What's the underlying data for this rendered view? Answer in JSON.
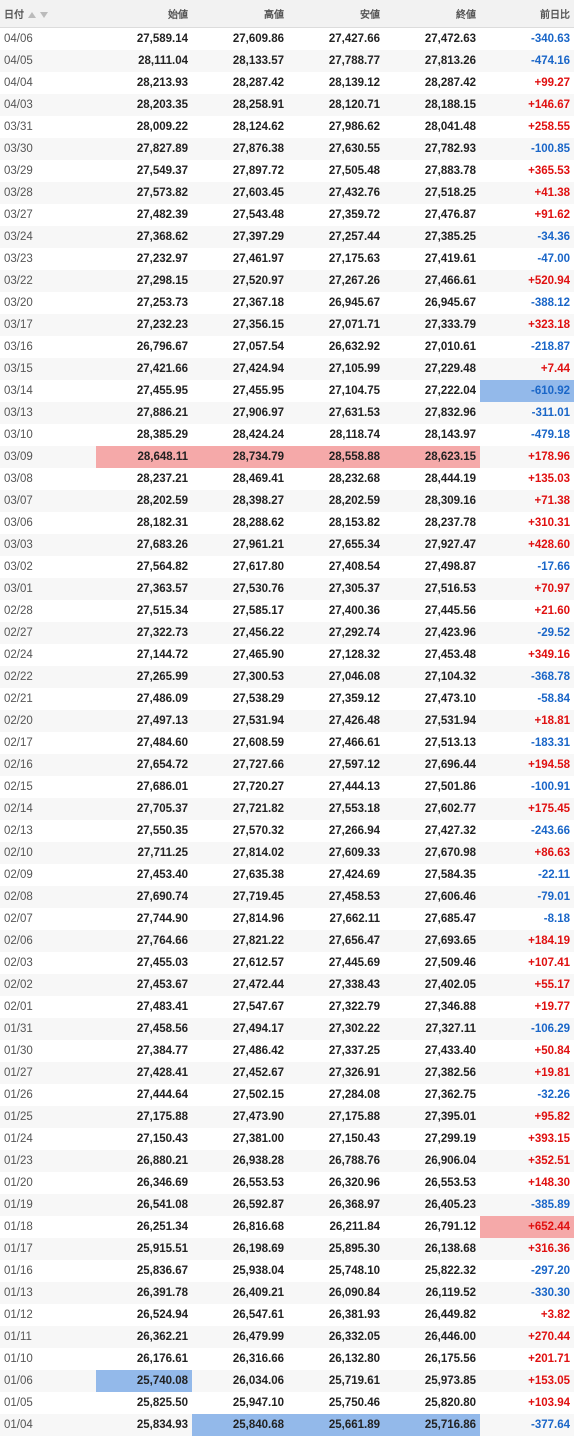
{
  "header": {
    "columns": [
      "日付",
      "始値",
      "高値",
      "安値",
      "終値",
      "前日比"
    ]
  },
  "rows": [
    [
      "04/06",
      "27,589.14",
      "27,609.86",
      "27,427.66",
      "27,472.63",
      "-340.63"
    ],
    [
      "04/05",
      "28,111.04",
      "28,133.57",
      "27,788.77",
      "27,813.26",
      "-474.16"
    ],
    [
      "04/04",
      "28,213.93",
      "28,287.42",
      "28,139.12",
      "28,287.42",
      "+99.27"
    ],
    [
      "04/03",
      "28,203.35",
      "28,258.91",
      "28,120.71",
      "28,188.15",
      "+146.67"
    ],
    [
      "03/31",
      "28,009.22",
      "28,124.62",
      "27,986.62",
      "28,041.48",
      "+258.55"
    ],
    [
      "03/30",
      "27,827.89",
      "27,876.38",
      "27,630.55",
      "27,782.93",
      "-100.85"
    ],
    [
      "03/29",
      "27,549.37",
      "27,897.72",
      "27,505.48",
      "27,883.78",
      "+365.53"
    ],
    [
      "03/28",
      "27,573.82",
      "27,603.45",
      "27,432.76",
      "27,518.25",
      "+41.38"
    ],
    [
      "03/27",
      "27,482.39",
      "27,543.48",
      "27,359.72",
      "27,476.87",
      "+91.62"
    ],
    [
      "03/24",
      "27,368.62",
      "27,397.29",
      "27,257.44",
      "27,385.25",
      "-34.36"
    ],
    [
      "03/23",
      "27,232.97",
      "27,461.97",
      "27,175.63",
      "27,419.61",
      "-47.00"
    ],
    [
      "03/22",
      "27,298.15",
      "27,520.97",
      "27,267.26",
      "27,466.61",
      "+520.94"
    ],
    [
      "03/20",
      "27,253.73",
      "27,367.18",
      "26,945.67",
      "26,945.67",
      "-388.12"
    ],
    [
      "03/17",
      "27,232.23",
      "27,356.15",
      "27,071.71",
      "27,333.79",
      "+323.18"
    ],
    [
      "03/16",
      "26,796.67",
      "27,057.54",
      "26,632.92",
      "27,010.61",
      "-218.87"
    ],
    [
      "03/15",
      "27,421.66",
      "27,424.94",
      "27,105.99",
      "27,229.48",
      "+7.44"
    ],
    [
      "03/14",
      "27,455.95",
      "27,455.95",
      "27,104.75",
      "27,222.04",
      "-610.92"
    ],
    [
      "03/13",
      "27,886.21",
      "27,906.97",
      "27,631.53",
      "27,832.96",
      "-311.01"
    ],
    [
      "03/10",
      "28,385.29",
      "28,424.24",
      "28,118.74",
      "28,143.97",
      "-479.18"
    ],
    [
      "03/09",
      "28,648.11",
      "28,734.79",
      "28,558.88",
      "28,623.15",
      "+178.96"
    ],
    [
      "03/08",
      "28,237.21",
      "28,469.41",
      "28,232.68",
      "28,444.19",
      "+135.03"
    ],
    [
      "03/07",
      "28,202.59",
      "28,398.27",
      "28,202.59",
      "28,309.16",
      "+71.38"
    ],
    [
      "03/06",
      "28,182.31",
      "28,288.62",
      "28,153.82",
      "28,237.78",
      "+310.31"
    ],
    [
      "03/03",
      "27,683.26",
      "27,961.21",
      "27,655.34",
      "27,927.47",
      "+428.60"
    ],
    [
      "03/02",
      "27,564.82",
      "27,617.80",
      "27,408.54",
      "27,498.87",
      "-17.66"
    ],
    [
      "03/01",
      "27,363.57",
      "27,530.76",
      "27,305.37",
      "27,516.53",
      "+70.97"
    ],
    [
      "02/28",
      "27,515.34",
      "27,585.17",
      "27,400.36",
      "27,445.56",
      "+21.60"
    ],
    [
      "02/27",
      "27,322.73",
      "27,456.22",
      "27,292.74",
      "27,423.96",
      "-29.52"
    ],
    [
      "02/24",
      "27,144.72",
      "27,465.90",
      "27,128.32",
      "27,453.48",
      "+349.16"
    ],
    [
      "02/22",
      "27,265.99",
      "27,300.53",
      "27,046.08",
      "27,104.32",
      "-368.78"
    ],
    [
      "02/21",
      "27,486.09",
      "27,538.29",
      "27,359.12",
      "27,473.10",
      "-58.84"
    ],
    [
      "02/20",
      "27,497.13",
      "27,531.94",
      "27,426.48",
      "27,531.94",
      "+18.81"
    ],
    [
      "02/17",
      "27,484.60",
      "27,608.59",
      "27,466.61",
      "27,513.13",
      "-183.31"
    ],
    [
      "02/16",
      "27,654.72",
      "27,727.66",
      "27,597.12",
      "27,696.44",
      "+194.58"
    ],
    [
      "02/15",
      "27,686.01",
      "27,720.27",
      "27,444.13",
      "27,501.86",
      "-100.91"
    ],
    [
      "02/14",
      "27,705.37",
      "27,721.82",
      "27,553.18",
      "27,602.77",
      "+175.45"
    ],
    [
      "02/13",
      "27,550.35",
      "27,570.32",
      "27,266.94",
      "27,427.32",
      "-243.66"
    ],
    [
      "02/10",
      "27,711.25",
      "27,814.02",
      "27,609.33",
      "27,670.98",
      "+86.63"
    ],
    [
      "02/09",
      "27,453.40",
      "27,635.38",
      "27,424.69",
      "27,584.35",
      "-22.11"
    ],
    [
      "02/08",
      "27,690.74",
      "27,719.45",
      "27,458.53",
      "27,606.46",
      "-79.01"
    ],
    [
      "02/07",
      "27,744.90",
      "27,814.96",
      "27,662.11",
      "27,685.47",
      "-8.18"
    ],
    [
      "02/06",
      "27,764.66",
      "27,821.22",
      "27,656.47",
      "27,693.65",
      "+184.19"
    ],
    [
      "02/03",
      "27,455.03",
      "27,612.57",
      "27,445.69",
      "27,509.46",
      "+107.41"
    ],
    [
      "02/02",
      "27,453.67",
      "27,472.44",
      "27,338.43",
      "27,402.05",
      "+55.17"
    ],
    [
      "02/01",
      "27,483.41",
      "27,547.67",
      "27,322.79",
      "27,346.88",
      "+19.77"
    ],
    [
      "01/31",
      "27,458.56",
      "27,494.17",
      "27,302.22",
      "27,327.11",
      "-106.29"
    ],
    [
      "01/30",
      "27,384.77",
      "27,486.42",
      "27,337.25",
      "27,433.40",
      "+50.84"
    ],
    [
      "01/27",
      "27,428.41",
      "27,452.67",
      "27,326.91",
      "27,382.56",
      "+19.81"
    ],
    [
      "01/26",
      "27,444.64",
      "27,502.15",
      "27,284.08",
      "27,362.75",
      "-32.26"
    ],
    [
      "01/25",
      "27,175.88",
      "27,473.90",
      "27,175.88",
      "27,395.01",
      "+95.82"
    ],
    [
      "01/24",
      "27,150.43",
      "27,381.00",
      "27,150.43",
      "27,299.19",
      "+393.15"
    ],
    [
      "01/23",
      "26,880.21",
      "26,938.28",
      "26,788.76",
      "26,906.04",
      "+352.51"
    ],
    [
      "01/20",
      "26,346.69",
      "26,553.53",
      "26,320.96",
      "26,553.53",
      "+148.30"
    ],
    [
      "01/19",
      "26,541.08",
      "26,592.87",
      "26,368.97",
      "26,405.23",
      "-385.89"
    ],
    [
      "01/18",
      "26,251.34",
      "26,816.68",
      "26,211.84",
      "26,791.12",
      "+652.44"
    ],
    [
      "01/17",
      "25,915.51",
      "26,198.69",
      "25,895.30",
      "26,138.68",
      "+316.36"
    ],
    [
      "01/16",
      "25,836.67",
      "25,938.04",
      "25,748.10",
      "25,822.32",
      "-297.20"
    ],
    [
      "01/13",
      "26,391.78",
      "26,409.21",
      "26,090.84",
      "26,119.52",
      "-330.30"
    ],
    [
      "01/12",
      "26,524.94",
      "26,547.61",
      "26,381.93",
      "26,449.82",
      "+3.82"
    ],
    [
      "01/11",
      "26,362.21",
      "26,479.99",
      "26,332.05",
      "26,446.00",
      "+270.44"
    ],
    [
      "01/10",
      "26,176.61",
      "26,316.66",
      "26,132.80",
      "26,175.56",
      "+201.71"
    ],
    [
      "01/06",
      "25,740.08",
      "26,034.06",
      "25,719.61",
      "25,973.85",
      "+153.05"
    ],
    [
      "01/05",
      "25,825.50",
      "25,947.10",
      "25,750.46",
      "25,820.80",
      "+103.94"
    ],
    [
      "01/04",
      "25,834.93",
      "25,840.68",
      "25,661.89",
      "25,716.86",
      "-377.64"
    ]
  ]
}
